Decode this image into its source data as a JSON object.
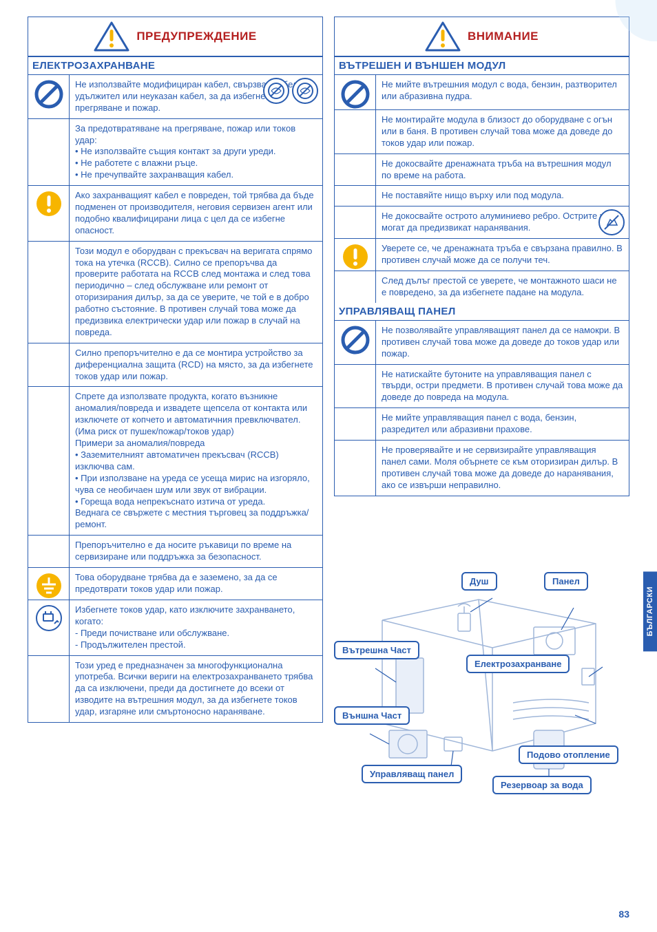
{
  "colors": {
    "accent": "#2a5db0",
    "danger": "#b42020",
    "warn_fill": "#f7b500",
    "bg": "#ffffff"
  },
  "side_tab": "БЪЛГАРСКИ",
  "page_number": "83",
  "left": {
    "header": "ПРЕДУПРЕЖДЕНИЕ",
    "section": "ЕЛЕКТРОЗАХРАНВАНЕ",
    "rows": [
      {
        "icon": "prohibit",
        "has_inline_icons": true,
        "text": "Не използвайте модифициран кабел, свързван кабел, удължител или неуказан кабел, за да избегнете прегряване и пожар."
      },
      {
        "icon": "",
        "text": "За предотвратяване на прегряване, пожар или токов удар:\n• Не използвайте същия контакт за други уреди.\n• Не работете с влажни ръце.\n• Не пречупвайте захранващия кабел."
      },
      {
        "icon": "excl",
        "text": "Ако захранващият кабел е повреден, той трябва да бъде подменен от производителя, неговия сервизен агент или подобно квалифицирани лица с цел да се избегне опасност."
      },
      {
        "icon": "",
        "text": "Този модул е оборудван с прекъсвач на веригата спрямо тока на утечка (RCCB). Силно се препоръчва да проверите работата на RCCB след монтажа и след това периодично – след обслужване или ремонт от оторизирания дилър, за да се уверите, че той е в добро работно състояние. В противен случай това може да предизвика електрически удар или пожар в случай на повреда."
      },
      {
        "icon": "",
        "text": "Силно препоръчително е да се монтира устройство за диференциална защита (RCD) на място, за да избегнете токов удар или пожар."
      },
      {
        "icon": "",
        "text": "Спрете да използвате продукта, когато възникне аномалия/повреда и извадете щепсела от контакта или изключете от копчето и автоматичния превключвател. (Има риск от пушек/пожар/токов удар)\nПримери за аномалия/повреда\n• Заземителният автоматичен прекъсвач (RCCB) изключва сам.\n• При използване на уреда се усеща мирис на изгоряло, чува се необичаен шум или звук от вибрации.\n• Гореща вода непрекъснато изтича от уреда.\nВеднага се свържете с местния търговец за поддръжка/ремонт."
      },
      {
        "icon": "",
        "text": "Препоръчително е да носите ръкавици по време на сервизиране или поддръжка за безопасност."
      },
      {
        "icon": "ground",
        "text": "Това оборудване трябва да е заземено, за да се предотврати токов удар или пожар."
      },
      {
        "icon": "plug",
        "text": "Избегнете токов удар, като изключите захранването, когато:\n- Преди почистване или обслужване.\n- Продължителен престой."
      },
      {
        "icon": "",
        "text": "Този уред е предназначен за многофункционална употреба. Всички вериги на електрозахранването трябва да са изключени, преди да достигнете до всеки от изводите на вътрешния модул, за да избегнете токов удар, изгаряне или смъртоносно нараняване."
      }
    ]
  },
  "right": {
    "header": "ВНИМАНИЕ",
    "section1": "ВЪТРЕШЕН И ВЪНШЕН МОДУЛ",
    "rows1": [
      {
        "icon": "prohibit",
        "text": "Не мийте вътрешния модул с вода, бензин, разтворител или абразивна пудра."
      },
      {
        "icon": "",
        "text": "Не монтирайте модула в близост до оборудване с огън или в баня. В противен случай това може да доведе до токов удар или пожар."
      },
      {
        "icon": "",
        "text": "Не докосвайте дренажната тръба на вътрешния модул по време на работа."
      },
      {
        "icon": "",
        "text": "Не поставяйте нищо върху или под модула."
      },
      {
        "icon": "",
        "has_inline_icons": true,
        "single_icon": true,
        "text": "Не докосвайте острото алуминиево ребро. Острите части могат да предизвикат наранявания."
      },
      {
        "icon": "excl",
        "text": "Уверете се, че дренажната тръба е свързана правилно. В противен случай може да се получи теч."
      },
      {
        "icon": "",
        "text": "След дълъг престой се уверете, че монтажното шаси не е повредено, за да избегнете падане на модула."
      }
    ],
    "section2": "УПРАВЛЯВАЩ ПАНЕЛ",
    "rows2": [
      {
        "icon": "prohibit",
        "text": "Не позволявайте управляващият панел да се намокри. В противен случай това може да доведе до токов удар или пожар."
      },
      {
        "icon": "",
        "text": "Не натискайте бутоните на управляващия панел с твърди, остри предмети. В противен случай това може да доведе до повреда на модула."
      },
      {
        "icon": "",
        "text": "Не мийте управляващия панел с вода, бензин, разредител или абразивни прахове."
      },
      {
        "icon": "",
        "text": "Не проверявайте и не сервизирайте управляващия панел сами. Моля обърнете се към оторизиран дилър. В противен случай това може да доведе до наранявания, ако се извърши неправилно."
      }
    ]
  },
  "diagram": {
    "labels": {
      "shower": "Душ",
      "panel": "Панел",
      "indoor": "Вътрешна Част",
      "outdoor": "Външна Част",
      "power": "Електрозахранване",
      "control": "Управляващ панел",
      "floor": "Подово отопление",
      "tank": "Резервоар за вода"
    }
  }
}
